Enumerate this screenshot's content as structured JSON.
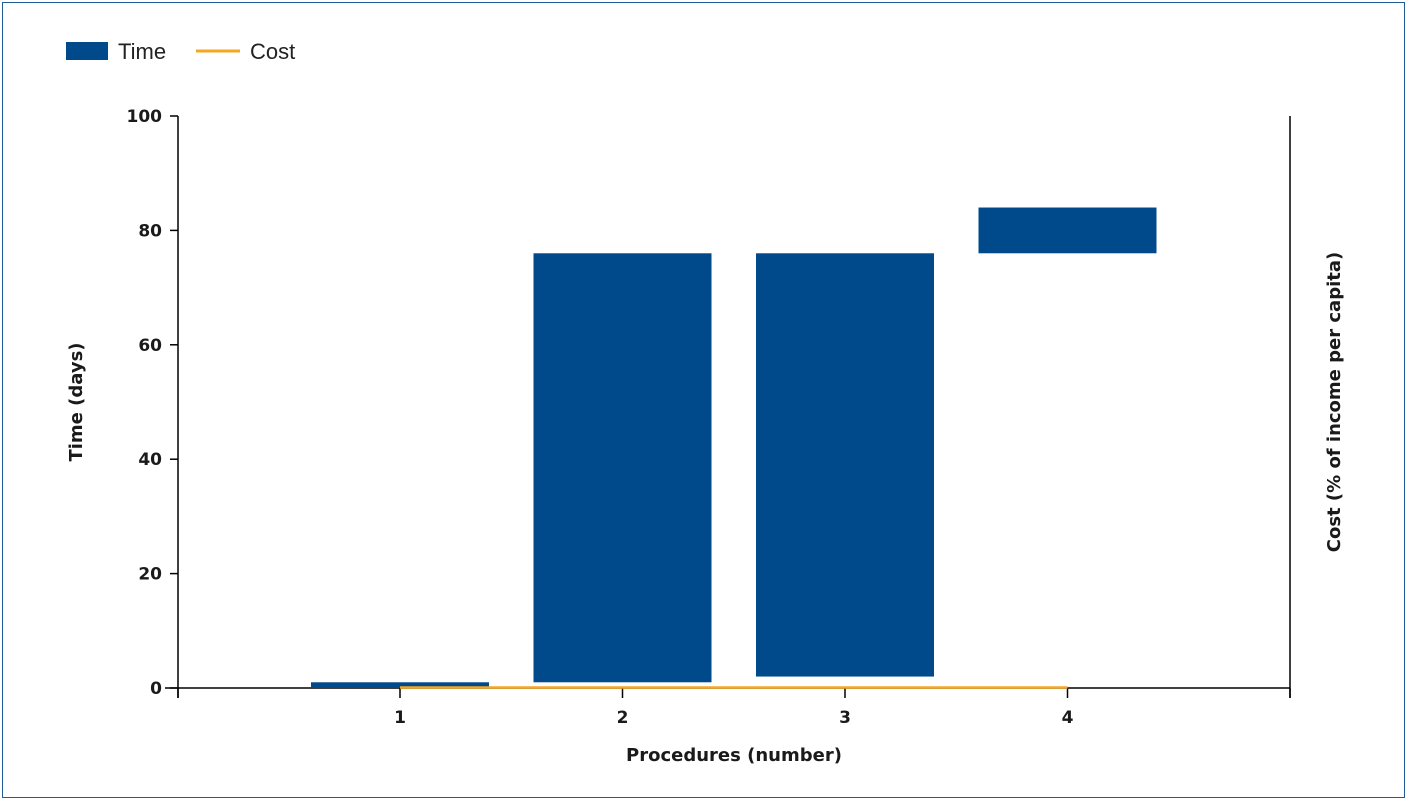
{
  "chart_data": {
    "type": "bar",
    "subtype": "floating-bar-with-line",
    "categories": [
      "1",
      "2",
      "3",
      "4"
    ],
    "series": [
      {
        "name": "Time",
        "kind": "floating-bar",
        "color": "#004a8c",
        "values": [
          [
            0,
            1
          ],
          [
            1,
            76
          ],
          [
            2,
            76
          ],
          [
            76,
            84
          ]
        ]
      },
      {
        "name": "Cost",
        "kind": "line",
        "color": "#f5a623",
        "values": [
          0,
          0,
          0,
          0
        ]
      }
    ],
    "xlabel": "Procedures (number)",
    "ylabel": "Time (days)",
    "y2label": "Cost (% of income per capita)",
    "ylim": [
      0,
      100
    ],
    "yticks": [
      0,
      20,
      40,
      60,
      80,
      100
    ],
    "legend": "top-left",
    "grid": false
  }
}
